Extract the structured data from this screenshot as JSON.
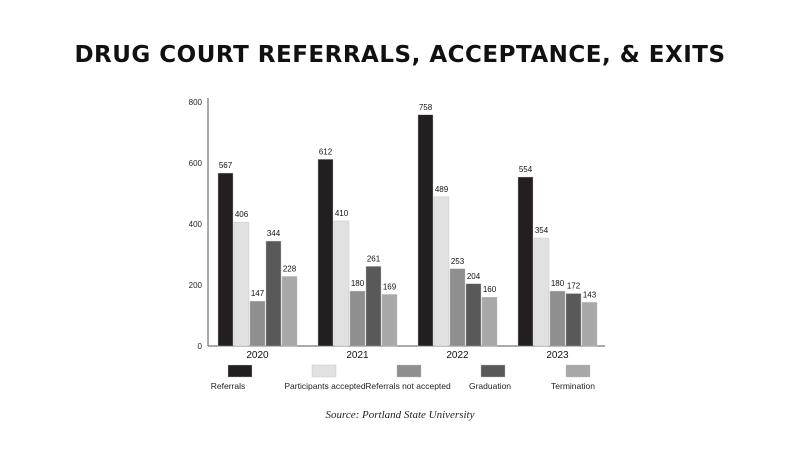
{
  "title": "DRUG COURT REFERRALS, ACCEPTANCE, & EXITS",
  "source": "Source: Portland State University",
  "chart_data": {
    "type": "bar",
    "title": "DRUG COURT REFERRALS, ACCEPTANCE, & EXITS",
    "categories": [
      "2020",
      "2021",
      "2022",
      "2023"
    ],
    "ylim": [
      0,
      800
    ],
    "yticks": [
      0,
      200,
      400,
      600,
      800
    ],
    "grid": false,
    "legend_position": "bottom",
    "series": [
      {
        "name": "Referrals",
        "color": "#231f20",
        "values": [
          567,
          612,
          758,
          554
        ]
      },
      {
        "name": "Participants accepted",
        "color": "#e1e1e1",
        "values": [
          406,
          410,
          489,
          354
        ]
      },
      {
        "name": "Referrals not accepted",
        "color": "#8f8f8f",
        "values": [
          147,
          180,
          253,
          180
        ]
      },
      {
        "name": "Graduation",
        "color": "#595959",
        "values": [
          344,
          261,
          204,
          172
        ]
      },
      {
        "name": "Termination",
        "color": "#a8a8a8",
        "values": [
          228,
          169,
          160,
          143
        ]
      }
    ]
  }
}
